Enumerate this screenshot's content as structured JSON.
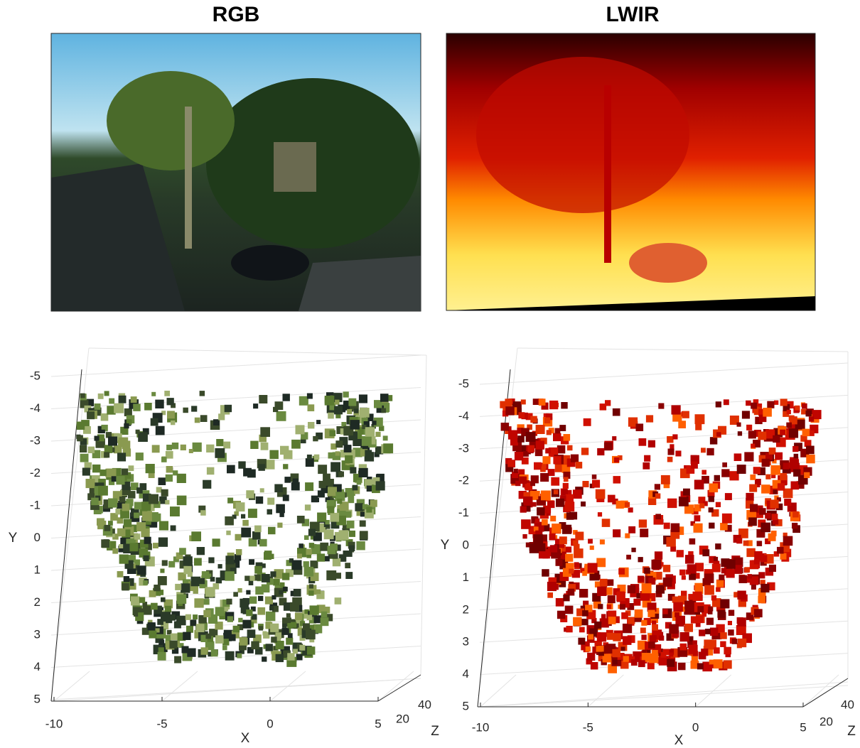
{
  "panels": [
    {
      "title": "RGB",
      "y_label": "Y",
      "x_label": "X",
      "z_label": "Z",
      "y_ticks": [
        -5,
        -4,
        -3,
        -2,
        -1,
        0,
        1,
        2,
        3,
        4,
        5
      ],
      "x_ticks": [
        -10,
        -5,
        0,
        5
      ],
      "z_ticks": [
        20,
        40
      ]
    },
    {
      "title": "LWIR",
      "y_label": "Y",
      "x_label": "X",
      "z_label": "Z",
      "y_ticks": [
        -5,
        -4,
        -3,
        -2,
        -1,
        0,
        1,
        2,
        3,
        4,
        5
      ],
      "x_ticks": [
        -10,
        -5,
        0,
        5
      ],
      "z_ticks": [
        20,
        40
      ]
    }
  ]
}
